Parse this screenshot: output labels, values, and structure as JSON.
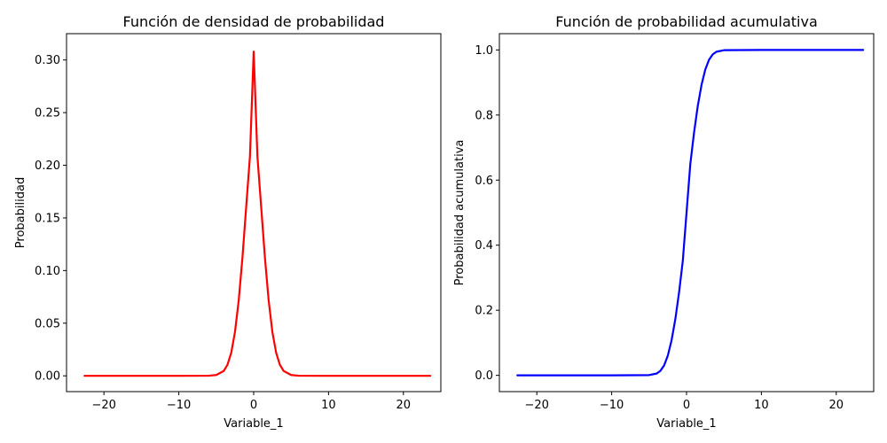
{
  "chart_data": [
    {
      "type": "line",
      "title": "Función de densidad de probabilidad",
      "xlabel": "Variable_1",
      "ylabel": "Probabilidad",
      "xlim": [
        -25,
        25
      ],
      "ylim": [
        -0.015,
        0.325
      ],
      "xticks": [
        -20,
        -10,
        0,
        10,
        20
      ],
      "xtick_labels": [
        "−20",
        "−10",
        "0",
        "10",
        "20"
      ],
      "yticks": [
        0.0,
        0.05,
        0.1,
        0.15,
        0.2,
        0.25,
        0.3
      ],
      "ytick_labels": [
        "0.00",
        "0.05",
        "0.10",
        "0.15",
        "0.20",
        "0.25",
        "0.30"
      ],
      "grid": false,
      "series": [
        {
          "color": "#ff0000",
          "x": [
            -22.6,
            -10,
            -6,
            -5,
            -4,
            -3.5,
            -3,
            -2.5,
            -2,
            -1.5,
            -1,
            -0.5,
            0,
            0.5,
            1,
            1.5,
            2,
            2.5,
            3,
            3.5,
            4,
            5,
            6,
            10,
            23.6
          ],
          "y": [
            0.0,
            0.0,
            0.0001,
            0.0008,
            0.0046,
            0.0105,
            0.0219,
            0.0415,
            0.0716,
            0.1124,
            0.1605,
            0.2084,
            0.308,
            0.2084,
            0.1605,
            0.1124,
            0.0716,
            0.0415,
            0.0219,
            0.0105,
            0.0046,
            0.0008,
            0.0001,
            0.0,
            0.0
          ]
        }
      ]
    },
    {
      "type": "line",
      "title": "Función de probabilidad acumulativa",
      "xlabel": "Variable_1",
      "ylabel": "Probabilidad acumulativa",
      "xlim": [
        -25,
        25
      ],
      "ylim": [
        -0.05,
        1.05
      ],
      "xticks": [
        -20,
        -10,
        0,
        10,
        20
      ],
      "xtick_labels": [
        "−20",
        "−10",
        "0",
        "10",
        "20"
      ],
      "yticks": [
        0.0,
        0.2,
        0.4,
        0.6,
        0.8,
        1.0
      ],
      "ytick_labels": [
        "0.0",
        "0.2",
        "0.4",
        "0.6",
        "0.8",
        "1.0"
      ],
      "grid": false,
      "series": [
        {
          "color": "#0000ff",
          "x": [
            -22.6,
            -10,
            -5,
            -4,
            -3.5,
            -3,
            -2.5,
            -2,
            -1.5,
            -1,
            -0.5,
            0,
            0.5,
            1,
            1.5,
            2,
            2.5,
            3,
            3.5,
            4,
            5,
            10,
            23.6
          ],
          "y": [
            0.0,
            0.0,
            0.0008,
            0.0055,
            0.0136,
            0.0304,
            0.0606,
            0.1076,
            0.1723,
            0.2546,
            0.3517,
            0.5,
            0.6483,
            0.7454,
            0.8277,
            0.8924,
            0.9394,
            0.9696,
            0.9864,
            0.9945,
            0.9992,
            1.0,
            1.0
          ]
        }
      ]
    }
  ]
}
